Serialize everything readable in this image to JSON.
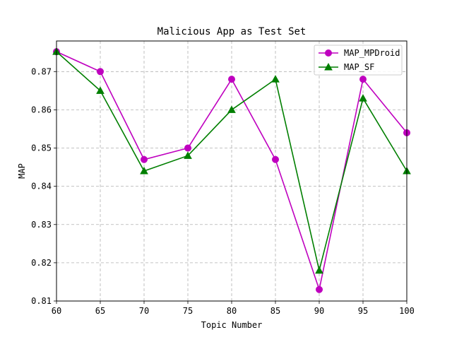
{
  "chart_data": {
    "type": "line",
    "title": "Malicious App as Test Set",
    "xlabel": "Topic Number",
    "ylabel": "MAP",
    "x": [
      60,
      65,
      70,
      75,
      80,
      85,
      90,
      95,
      100
    ],
    "xlim": [
      60,
      100
    ],
    "ylim": [
      0.81,
      0.878
    ],
    "x_ticks": [
      "60",
      "65",
      "70",
      "75",
      "80",
      "85",
      "90",
      "95",
      "100"
    ],
    "y_ticks": [
      "0.81",
      "0.82",
      "0.83",
      "0.84",
      "0.85",
      "0.86",
      "0.87"
    ],
    "y_tick_values": [
      0.81,
      0.82,
      0.83,
      0.84,
      0.85,
      0.86,
      0.87
    ],
    "grid": true,
    "legend_position": "top-right",
    "series": [
      {
        "name": "MAP_MPDroid",
        "color": "#bf00bf",
        "marker": "circle",
        "values": [
          0.8752,
          0.87,
          0.847,
          0.85,
          0.868,
          0.847,
          0.813,
          0.868,
          0.854
        ]
      },
      {
        "name": "MAP_SF",
        "color": "#007f00",
        "marker": "triangle",
        "values": [
          0.8752,
          0.865,
          0.844,
          0.848,
          0.86,
          0.868,
          0.818,
          0.863,
          0.844
        ]
      }
    ]
  }
}
